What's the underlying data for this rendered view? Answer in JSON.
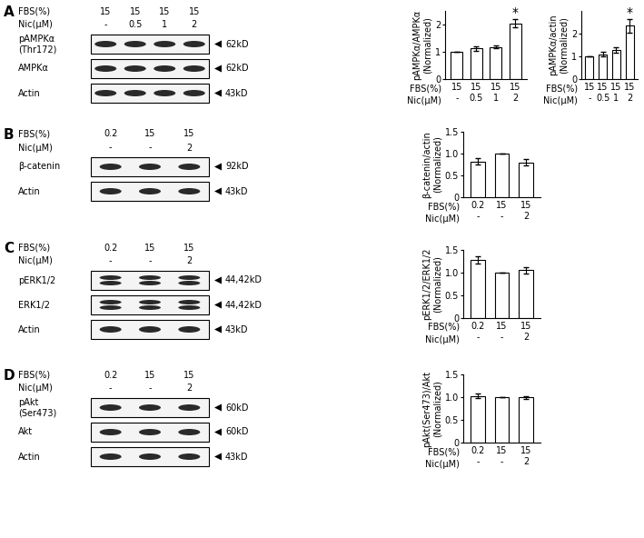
{
  "chart_data": [
    {
      "type": "bar",
      "ylabel": "pAMPKα/AMPKα\n(Normalized)",
      "row_labels": [
        "FBS(%)",
        "Nic(μM)"
      ],
      "categories": [
        "15\n-",
        "15\n0.5",
        "15\n1",
        "15\n2"
      ],
      "values": [
        1.0,
        1.12,
        1.18,
        2.05
      ],
      "errors": [
        0,
        0.07,
        0.06,
        0.15
      ],
      "color": "#ffffff",
      "ylim": [
        0,
        2.5
      ],
      "yticks": [
        0,
        1,
        2
      ],
      "annotations": [
        {
          "index": 3,
          "text": "*"
        }
      ]
    },
    {
      "type": "bar",
      "ylabel": "pAMPKα/actin\n(Normalized)",
      "row_labels": [
        "FBS(%)",
        "Nic(μM)"
      ],
      "categories": [
        "15\n-",
        "15\n0.5",
        "15\n1",
        "15\n2"
      ],
      "values": [
        1.0,
        1.1,
        1.3,
        2.35
      ],
      "errors": [
        0,
        0.1,
        0.12,
        0.3
      ],
      "color": "#ffffff",
      "ylim": [
        0,
        3
      ],
      "yticks": [
        0,
        1,
        2
      ],
      "annotations": [
        {
          "index": 3,
          "text": "*"
        }
      ]
    },
    {
      "type": "bar",
      "ylabel": "β-catenin/actin\n(Normalized)",
      "row_labels": [
        "FBS(%)",
        "Nic(μM)"
      ],
      "categories": [
        "0.2\n-",
        "15\n-",
        "15\n2"
      ],
      "values": [
        0.82,
        1.0,
        0.8
      ],
      "errors": [
        0.08,
        0,
        0.07
      ],
      "color": "#ffffff",
      "ylim": [
        0,
        1.5
      ],
      "yticks": [
        0,
        0.5,
        {
          "value": 1,
          "label": "1.0"
        },
        1.5
      ]
    },
    {
      "type": "bar",
      "ylabel": "pERK1/2/ERK1/2\n(Normalized)",
      "row_labels": [
        "FBS(%)",
        "Nic(μM)"
      ],
      "categories": [
        "0.2\n-",
        "15\n-",
        "15\n2"
      ],
      "values": [
        1.27,
        1.0,
        1.05
      ],
      "errors": [
        0.08,
        0,
        0.07
      ],
      "color": "#ffffff",
      "ylim": [
        0,
        1.5
      ],
      "yticks": [
        0,
        0.5,
        {
          "value": 1,
          "label": "1.0"
        },
        1.5
      ]
    },
    {
      "type": "bar",
      "ylabel": "pAkt(Ser473)/Akt\n(Normalized)",
      "row_labels": [
        "FBS(%)",
        "Nic(μM)"
      ],
      "categories": [
        "0.2\n-",
        "15\n-",
        "15\n2"
      ],
      "values": [
        1.03,
        1.0,
        1.0
      ],
      "errors": [
        0.05,
        0,
        0.03
      ],
      "color": "#ffffff",
      "ylim": [
        0,
        1.5
      ],
      "yticks": [
        0,
        0.5,
        {
          "value": 1,
          "label": "1.0"
        },
        1.5
      ]
    }
  ],
  "blots": [
    {
      "panel": "A",
      "rows": [
        {
          "label": "FBS(%)",
          "values": [
            "15",
            "15",
            "15",
            "15"
          ]
        },
        {
          "label": "Nic(μM)",
          "values": [
            "-",
            "0.5",
            "1",
            "2"
          ]
        }
      ],
      "bands": [
        {
          "label": "pAMPKα\n(Thr172)",
          "size": "62kD"
        },
        {
          "label": "AMPKα",
          "size": "62kD"
        },
        {
          "label": "Actin",
          "size": "43kD"
        }
      ]
    },
    {
      "panel": "B",
      "rows": [
        {
          "label": "FBS(%)",
          "values": [
            "0.2",
            "15",
            "15"
          ]
        },
        {
          "label": "Nic(μM)",
          "values": [
            "-",
            "-",
            "2"
          ]
        }
      ],
      "bands": [
        {
          "label": "β-catenin",
          "size": "92kD"
        },
        {
          "label": "Actin",
          "size": "43kD"
        }
      ]
    },
    {
      "panel": "C",
      "rows": [
        {
          "label": "FBS(%)",
          "values": [
            "0.2",
            "15",
            "15"
          ]
        },
        {
          "label": "Nic(μM)",
          "values": [
            "-",
            "-",
            "2"
          ]
        }
      ],
      "bands": [
        {
          "label": "pERK1/2",
          "size": "44,42kD"
        },
        {
          "label": "ERK1/2",
          "size": "44,42kD"
        },
        {
          "label": "Actin",
          "size": "43kD"
        }
      ]
    },
    {
      "panel": "D",
      "rows": [
        {
          "label": "FBS(%)",
          "values": [
            "0.2",
            "15",
            "15"
          ]
        },
        {
          "label": "Nic(μM)",
          "values": [
            "-",
            "-",
            "2"
          ]
        }
      ],
      "bands": [
        {
          "label": "pAkt\n(Ser473)",
          "size": "60kD"
        },
        {
          "label": "Akt",
          "size": "60kD"
        },
        {
          "label": "Actin",
          "size": "43kD"
        }
      ]
    }
  ]
}
